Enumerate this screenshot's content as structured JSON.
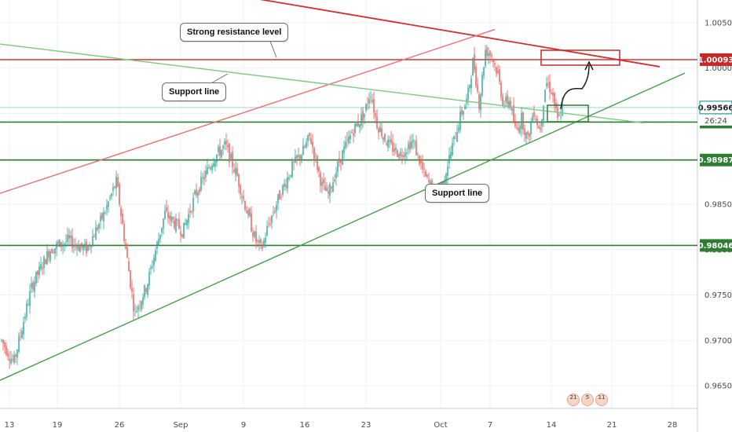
{
  "chart_data": {
    "type": "candlestick",
    "ylim": [
      0.9625,
      1.0075
    ],
    "x_ticks": [
      "13",
      "19",
      "26",
      "Sep",
      "9",
      "16",
      "23",
      "Oct",
      "7",
      "14",
      "21",
      "28"
    ],
    "y_ticks": [
      "1.00500",
      "1.00000",
      "0.99500",
      "0.99000",
      "0.98500",
      "0.98000",
      "0.97500",
      "0.97000",
      "0.96500"
    ],
    "price_path": [
      [
        13,
        0.97
      ],
      [
        15,
        0.9675
      ],
      [
        18,
        0.976
      ],
      [
        21,
        0.98
      ],
      [
        24,
        0.981
      ],
      [
        27,
        0.98
      ],
      [
        30,
        0.984
      ],
      [
        32,
        0.9875
      ],
      [
        35,
        0.973
      ],
      [
        37,
        0.976
      ],
      [
        40,
        0.984
      ],
      [
        43,
        0.982
      ],
      [
        45,
        0.986
      ],
      [
        48,
        0.99
      ],
      [
        50,
        0.9915
      ],
      [
        52,
        0.988
      ],
      [
        53,
        0.9855
      ],
      [
        55,
        0.981
      ],
      [
        56,
        0.98
      ],
      [
        57,
        0.9825
      ],
      [
        59,
        0.986
      ],
      [
        61,
        0.989
      ],
      [
        63,
        0.991
      ],
      [
        64,
        0.9925
      ],
      [
        66,
        0.987
      ],
      [
        67,
        0.986
      ],
      [
        69,
        0.99
      ],
      [
        71,
        0.993
      ],
      [
        73,
        0.995
      ],
      [
        74,
        0.9975
      ],
      [
        75,
        0.994
      ],
      [
        77,
        0.9915
      ],
      [
        79,
        0.9905
      ],
      [
        81,
        0.992
      ],
      [
        83,
        0.988
      ],
      [
        85,
        0.986
      ],
      [
        86,
        0.9875
      ],
      [
        88,
        0.9925
      ],
      [
        89,
        0.995
      ],
      [
        90,
        0.9965
      ],
      [
        91,
        1.001
      ],
      [
        92,
        0.996
      ],
      [
        93,
        1.002
      ],
      [
        94,
        1.0015
      ],
      [
        95,
        0.9995
      ],
      [
        96,
        0.996
      ],
      [
        97,
        0.9965
      ],
      [
        98,
        0.993
      ],
      [
        99,
        0.9945
      ],
      [
        100,
        0.992
      ],
      [
        101,
        0.9955
      ],
      [
        102,
        0.993
      ],
      [
        103,
        0.9985
      ],
      [
        104,
        0.9975
      ],
      [
        105,
        0.994
      ],
      [
        106,
        0.9963
      ]
    ],
    "levels": [
      {
        "price": 1.00093,
        "label": "1.00093",
        "color": "#c62828"
      },
      {
        "price": 0.99405,
        "label": "0.99405",
        "color": "#2e7d32"
      },
      {
        "price": 0.98987,
        "label": "0.98987",
        "color": "#2e7d32"
      },
      {
        "price": 0.98046,
        "label": "0.98046",
        "color": "#2e7d32"
      }
    ],
    "current_price": {
      "label": "0.99566",
      "color": "#26a69a"
    },
    "countdown": "26:24",
    "trendlines": [
      {
        "name": "resistance-descending",
        "color": "#d32f2f",
        "from": [
          0,
          1.0124
        ],
        "to": [
          840,
          1.00015
        ]
      },
      {
        "name": "red-ascending-channel",
        "color": "#e57373",
        "from": [
          0,
          0.9862
        ],
        "to": [
          630,
          1.00425
        ]
      },
      {
        "name": "support-descending",
        "color": "#81c784",
        "from": [
          0,
          1.00265
        ],
        "to": [
          820,
          0.99395
        ]
      },
      {
        "name": "support-ascending",
        "color": "#43a047",
        "from": [
          0,
          0.9656
        ],
        "to": [
          872,
          0.99945
        ]
      }
    ],
    "annotations": {
      "resistance_label": "Strong resistance level",
      "support_label_top": "Support line",
      "support_label_bottom": "Support line"
    },
    "events": [
      "21",
      "5",
      "11"
    ]
  }
}
